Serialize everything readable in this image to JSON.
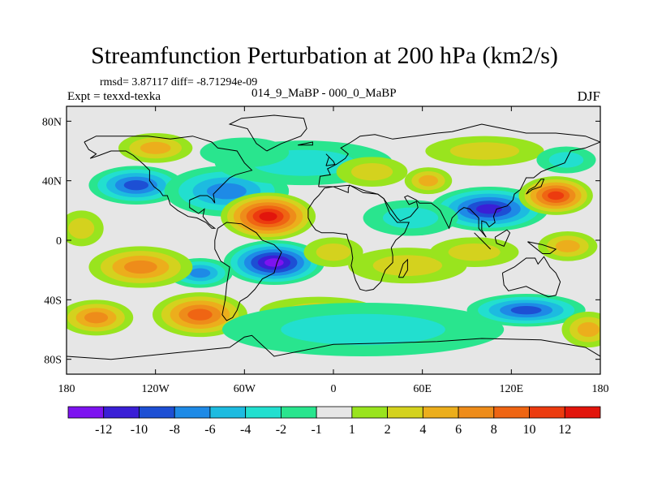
{
  "header": {
    "title": "Streamfunction Perturbation at 200 hPa (km2/s)",
    "stats": "rmsd= 3.87117 diff= -8.71294e-09",
    "experiment": "Expt = texxd-texka",
    "subtitle": "014_9_MaBP - 000_0_MaBP",
    "season": "DJF"
  },
  "map": {
    "projection": "cylindrical-equidistant",
    "lon_range": [
      -180,
      180
    ],
    "lat_range": [
      -90,
      90
    ],
    "lon_ticks": [
      {
        "value": -180,
        "label": "180"
      },
      {
        "value": -120,
        "label": "120W"
      },
      {
        "value": -60,
        "label": "60W"
      },
      {
        "value": 0,
        "label": "0"
      },
      {
        "value": 60,
        "label": "60E"
      },
      {
        "value": 120,
        "label": "120E"
      },
      {
        "value": 180,
        "label": "180"
      }
    ],
    "lat_ticks": [
      {
        "value": 80,
        "label": "80N"
      },
      {
        "value": 40,
        "label": "40N"
      },
      {
        "value": 0,
        "label": "0"
      },
      {
        "value": -40,
        "label": "40S"
      },
      {
        "value": -80,
        "label": "80S"
      }
    ],
    "background_color": "#e6e6e6",
    "coastline_color": "#000000",
    "features": [
      {
        "lon": -133,
        "lat": 37,
        "value": -8,
        "rx": 32,
        "ry": 13
      },
      {
        "lon": -72,
        "lat": 33,
        "value": -6,
        "rx": 42,
        "ry": 17
      },
      {
        "lon": -20,
        "lat": 52,
        "value": -3,
        "rx": 60,
        "ry": 15
      },
      {
        "lon": -60,
        "lat": 59,
        "value": -1,
        "rx": 30,
        "ry": 10
      },
      {
        "lon": -120,
        "lat": 62,
        "value": 4,
        "rx": 25,
        "ry": 10
      },
      {
        "lon": -44,
        "lat": 16,
        "value": 12,
        "rx": 32,
        "ry": 16
      },
      {
        "lon": 26,
        "lat": 46,
        "value": 3,
        "rx": 24,
        "ry": 10
      },
      {
        "lon": 64,
        "lat": 40,
        "value": 5,
        "rx": 16,
        "ry": 9
      },
      {
        "lon": 102,
        "lat": 60,
        "value": 3,
        "rx": 40,
        "ry": 10
      },
      {
        "lon": 105,
        "lat": 21,
        "value": -10,
        "rx": 40,
        "ry": 15
      },
      {
        "lon": 52,
        "lat": 15,
        "value": -2,
        "rx": 32,
        "ry": 12
      },
      {
        "lon": 150,
        "lat": 30,
        "value": 10,
        "rx": 25,
        "ry": 13
      },
      {
        "lon": 157,
        "lat": 54,
        "value": -3,
        "rx": 20,
        "ry": 9
      },
      {
        "lon": -170,
        "lat": 8,
        "value": 2,
        "rx": 15,
        "ry": 12
      },
      {
        "lon": 158,
        "lat": -4,
        "value": 4,
        "rx": 20,
        "ry": 10
      },
      {
        "lon": -40,
        "lat": -15,
        "value": -13,
        "rx": 34,
        "ry": 15
      },
      {
        "lon": -90,
        "lat": -22,
        "value": -6,
        "rx": 22,
        "ry": 10
      },
      {
        "lon": -130,
        "lat": -18,
        "value": 6,
        "rx": 35,
        "ry": 14
      },
      {
        "lon": 0,
        "lat": -8,
        "value": 2,
        "rx": 20,
        "ry": 10
      },
      {
        "lon": 50,
        "lat": -17,
        "value": 3,
        "rx": 40,
        "ry": 12
      },
      {
        "lon": 95,
        "lat": -8,
        "value": 3,
        "rx": 30,
        "ry": 10
      },
      {
        "lon": -90,
        "lat": -50,
        "value": 8,
        "rx": 32,
        "ry": 15
      },
      {
        "lon": -160,
        "lat": -52,
        "value": 6,
        "rx": 25,
        "ry": 12
      },
      {
        "lon": -10,
        "lat": -48,
        "value": 2,
        "rx": 40,
        "ry": 10
      },
      {
        "lon": 20,
        "lat": -60,
        "value": -3,
        "rx": 95,
        "ry": 18
      },
      {
        "lon": 130,
        "lat": -47,
        "value": -8,
        "rx": 40,
        "ry": 11
      },
      {
        "lon": 172,
        "lat": -60,
        "value": 4,
        "rx": 18,
        "ry": 12
      }
    ],
    "coastlines": [
      [
        [
          -168,
          66
        ],
        [
          -160,
          70
        ],
        [
          -140,
          70
        ],
        [
          -125,
          70
        ],
        [
          -110,
          68
        ],
        [
          -95,
          70
        ],
        [
          -82,
          66
        ],
        [
          -78,
          62
        ],
        [
          -65,
          60
        ],
        [
          -60,
          52
        ],
        [
          -55,
          47
        ],
        [
          -66,
          44
        ],
        [
          -70,
          42
        ],
        [
          -76,
          36
        ],
        [
          -81,
          31
        ],
        [
          -80,
          25
        ],
        [
          -82,
          28
        ],
        [
          -85,
          30
        ],
        [
          -90,
          30
        ],
        [
          -97,
          27
        ],
        [
          -97,
          22
        ],
        [
          -91,
          18
        ],
        [
          -87,
          21
        ],
        [
          -88,
          16
        ],
        [
          -84,
          11
        ],
        [
          -80,
          8
        ],
        [
          -82,
          8
        ],
        [
          -86,
          12
        ],
        [
          -92,
          15
        ],
        [
          -98,
          16
        ],
        [
          -105,
          20
        ],
        [
          -110,
          24
        ],
        [
          -112,
          30
        ],
        [
          -115,
          30
        ],
        [
          -117,
          33
        ],
        [
          -121,
          36
        ],
        [
          -124,
          40
        ],
        [
          -124,
          47
        ],
        [
          -128,
          51
        ],
        [
          -135,
          57
        ],
        [
          -140,
          60
        ],
        [
          -150,
          60
        ],
        [
          -158,
          57
        ],
        [
          -164,
          55
        ],
        [
          -160,
          58
        ],
        [
          -165,
          61
        ],
        [
          -168,
          66
        ]
      ],
      [
        [
          -45,
          60
        ],
        [
          -52,
          65
        ],
        [
          -58,
          75
        ],
        [
          -70,
          78
        ],
        [
          -62,
          82
        ],
        [
          -40,
          84
        ],
        [
          -20,
          82
        ],
        [
          -18,
          75
        ],
        [
          -22,
          70
        ],
        [
          -35,
          65
        ],
        [
          -45,
          60
        ]
      ],
      [
        [
          -78,
          8
        ],
        [
          -72,
          12
        ],
        [
          -62,
          11
        ],
        [
          -52,
          5
        ],
        [
          -48,
          0
        ],
        [
          -40,
          -3
        ],
        [
          -35,
          -8
        ],
        [
          -38,
          -15
        ],
        [
          -40,
          -22
        ],
        [
          -48,
          -26
        ],
        [
          -53,
          -33
        ],
        [
          -58,
          -38
        ],
        [
          -63,
          -41
        ],
        [
          -65,
          -47
        ],
        [
          -68,
          -52
        ],
        [
          -72,
          -54
        ],
        [
          -75,
          -50
        ],
        [
          -73,
          -40
        ],
        [
          -72,
          -30
        ],
        [
          -70,
          -18
        ],
        [
          -76,
          -14
        ],
        [
          -80,
          -6
        ],
        [
          -80,
          0
        ],
        [
          -78,
          8
        ]
      ],
      [
        [
          -10,
          36
        ],
        [
          -9,
          43
        ],
        [
          -2,
          44
        ],
        [
          -4,
          48
        ],
        [
          2,
          51
        ],
        [
          8,
          55
        ],
        [
          10,
          58
        ],
        [
          5,
          62
        ],
        [
          12,
          66
        ],
        [
          18,
          70
        ],
        [
          28,
          71
        ],
        [
          40,
          68
        ],
        [
          55,
          70
        ],
        [
          70,
          72
        ],
        [
          80,
          73
        ],
        [
          100,
          78
        ],
        [
          110,
          76
        ],
        [
          130,
          72
        ],
        [
          150,
          72
        ],
        [
          170,
          70
        ],
        [
          180,
          66
        ],
        [
          170,
          62
        ],
        [
          160,
          60
        ],
        [
          156,
          52
        ],
        [
          145,
          48
        ],
        [
          140,
          46
        ],
        [
          135,
          42
        ],
        [
          130,
          42
        ],
        [
          128,
          38
        ],
        [
          126,
          34
        ],
        [
          122,
          31
        ],
        [
          121,
          27
        ],
        [
          117,
          23
        ],
        [
          110,
          21
        ],
        [
          108,
          16
        ],
        [
          109,
          12
        ],
        [
          105,
          9
        ],
        [
          103,
          12
        ],
        [
          100,
          13
        ],
        [
          100,
          7
        ],
        [
          103,
          2
        ],
        [
          98,
          8
        ],
        [
          98,
          15
        ],
        [
          92,
          21
        ],
        [
          88,
          22
        ],
        [
          85,
          20
        ],
        [
          80,
          15
        ],
        [
          78,
          8
        ],
        [
          72,
          20
        ],
        [
          70,
          22
        ],
        [
          66,
          25
        ],
        [
          58,
          25
        ],
        [
          56,
          27
        ],
        [
          50,
          30
        ],
        [
          48,
          29
        ],
        [
          51,
          24
        ],
        [
          56,
          26
        ],
        [
          57,
          22
        ],
        [
          52,
          16
        ],
        [
          45,
          13
        ],
        [
          43,
          15
        ],
        [
          38,
          22
        ],
        [
          34,
          28
        ],
        [
          30,
          31
        ],
        [
          22,
          33
        ],
        [
          11,
          37
        ],
        [
          10,
          35
        ],
        [
          10,
          32
        ],
        [
          0,
          36
        ],
        [
          -10,
          36
        ]
      ],
      [
        [
          -17,
          21
        ],
        [
          -17,
          15
        ],
        [
          -15,
          11
        ],
        [
          -12,
          7
        ],
        [
          -8,
          5
        ],
        [
          0,
          5
        ],
        [
          9,
          4
        ],
        [
          10,
          0
        ],
        [
          12,
          -5
        ],
        [
          13,
          -12
        ],
        [
          12,
          -17
        ],
        [
          15,
          -27
        ],
        [
          18,
          -33
        ],
        [
          22,
          -34
        ],
        [
          27,
          -33
        ],
        [
          32,
          -28
        ],
        [
          33,
          -25
        ],
        [
          35,
          -20
        ],
        [
          40,
          -15
        ],
        [
          40,
          -10
        ],
        [
          39,
          -5
        ],
        [
          42,
          0
        ],
        [
          48,
          5
        ],
        [
          51,
          12
        ],
        [
          43,
          12
        ],
        [
          38,
          18
        ],
        [
          34,
          28
        ],
        [
          30,
          31
        ],
        [
          20,
          32
        ],
        [
          11,
          37
        ],
        [
          0,
          36
        ],
        [
          -6,
          35
        ],
        [
          -10,
          30
        ],
        [
          -13,
          27
        ],
        [
          -17,
          21
        ]
      ],
      [
        [
          44,
          -25
        ],
        [
          47,
          -16
        ],
        [
          50,
          -13
        ],
        [
          50,
          -20
        ],
        [
          47,
          -25
        ],
        [
          44,
          -25
        ]
      ],
      [
        [
          114,
          -22
        ],
        [
          122,
          -18
        ],
        [
          130,
          -12
        ],
        [
          136,
          -12
        ],
        [
          138,
          -16
        ],
        [
          142,
          -11
        ],
        [
          146,
          -18
        ],
        [
          150,
          -22
        ],
        [
          153,
          -28
        ],
        [
          150,
          -37
        ],
        [
          145,
          -38
        ],
        [
          138,
          -35
        ],
        [
          130,
          -31
        ],
        [
          118,
          -34
        ],
        [
          115,
          -30
        ],
        [
          114,
          -22
        ]
      ],
      [
        [
          130,
          31
        ],
        [
          134,
          34
        ],
        [
          140,
          36
        ],
        [
          142,
          41
        ],
        [
          140,
          41
        ],
        [
          136,
          36
        ],
        [
          132,
          34
        ],
        [
          130,
          31
        ]
      ],
      [
        [
          95,
          5
        ],
        [
          105,
          -5
        ],
        [
          106,
          -6
        ],
        [
          100,
          0
        ],
        [
          95,
          5
        ]
      ],
      [
        [
          109,
          2
        ],
        [
          117,
          7
        ],
        [
          119,
          5
        ],
        [
          115,
          -4
        ],
        [
          110,
          -2
        ],
        [
          109,
          2
        ]
      ],
      [
        [
          131,
          -1
        ],
        [
          141,
          -3
        ],
        [
          150,
          -6
        ],
        [
          146,
          -9
        ],
        [
          141,
          -9
        ],
        [
          131,
          -1
        ]
      ],
      [
        [
          -5,
          50
        ],
        [
          -3,
          56
        ],
        [
          -5,
          58
        ],
        [
          0,
          53
        ],
        [
          1,
          51
        ],
        [
          -5,
          50
        ]
      ],
      [
        [
          -24,
          64
        ],
        [
          -14,
          66
        ],
        [
          -14,
          64
        ],
        [
          -24,
          64
        ]
      ],
      [
        [
          -180,
          -78
        ],
        [
          -150,
          -80
        ],
        [
          -100,
          -75
        ],
        [
          -70,
          -72
        ],
        [
          -60,
          -65
        ],
        [
          -55,
          -64
        ],
        [
          -40,
          -78
        ],
        [
          0,
          -70
        ],
        [
          40,
          -69
        ],
        [
          70,
          -68
        ],
        [
          100,
          -66
        ],
        [
          140,
          -67
        ],
        [
          170,
          -72
        ],
        [
          180,
          -78
        ]
      ]
    ]
  },
  "legend": {
    "bounds": [
      -14,
      -12,
      -10,
      -8,
      -6,
      -4,
      -2,
      -1,
      1,
      2,
      4,
      6,
      8,
      10,
      12,
      14
    ],
    "colors": [
      "#7d13f0",
      "#3a1fd6",
      "#1d4fd4",
      "#1e8ae6",
      "#1dbbe0",
      "#22dfcf",
      "#29e58e",
      "#e6e6e6",
      "#99e41e",
      "#d4d21e",
      "#ecae1c",
      "#ee8c1a",
      "#ef6513",
      "#ec3b0f",
      "#e2150c"
    ],
    "labels": [
      "-12",
      "-10",
      "-8",
      "-6",
      "-4",
      "-2",
      "-1",
      "1",
      "2",
      "4",
      "6",
      "8",
      "10",
      "12"
    ]
  }
}
